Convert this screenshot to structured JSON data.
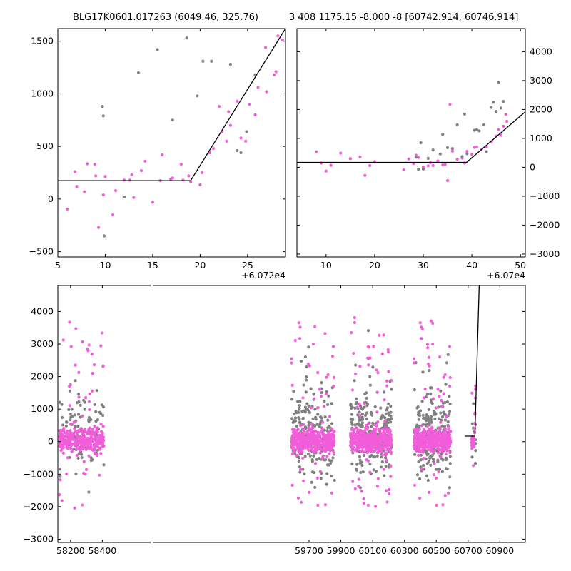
{
  "colors": {
    "model": "#000000",
    "fit_points": "#f25ddb",
    "other_points": "#808080",
    "background": "#ffffff"
  },
  "chart_data": [
    {
      "type": "scatter",
      "title": "BLG17K0601.017263 (6049.46, 325.76)",
      "x_offset_label": "+6.072e4",
      "xlabel": "",
      "ylabel": "",
      "xlim": [
        5,
        29
      ],
      "ylim": [
        -550,
        1620
      ],
      "xticks": [
        5,
        10,
        15,
        20,
        25
      ],
      "yticks": [
        -500,
        0,
        500,
        1000,
        1500
      ],
      "model_line": {
        "x": [
          5,
          19.0,
          29
        ],
        "y": [
          175,
          175,
          1620
        ]
      },
      "series": [
        {
          "color": "#f25ddb",
          "x": [
            6.0,
            6.8,
            7.0,
            7.8,
            8.1,
            8.9,
            9.0,
            9.3,
            9.8,
            10.0,
            10.8,
            11.1,
            12.0,
            12.6,
            12.8,
            13.0,
            13.8,
            14.2,
            15.0,
            15.8,
            16.0,
            16.9,
            17.1,
            18.0,
            18.2,
            18.8,
            19.0,
            20.0,
            20.2,
            21.0,
            21.4,
            22.0,
            22.3,
            22.8,
            23.0,
            23.2,
            23.9,
            24.3,
            24.8,
            25.2,
            25.8,
            26.1,
            26.9,
            27.0,
            27.8,
            28.0,
            28.2,
            28.7
          ],
          "y": [
            -95,
            260,
            120,
            70,
            335,
            330,
            220,
            -270,
            40,
            215,
            -150,
            80,
            180,
            180,
            230,
            15,
            270,
            360,
            -30,
            175,
            420,
            190,
            200,
            330,
            180,
            220,
            165,
            135,
            250,
            440,
            480,
            880,
            640,
            550,
            830,
            700,
            930,
            580,
            550,
            900,
            800,
            1060,
            1440,
            1020,
            1180,
            1210,
            1550,
            1510
          ]
        },
        {
          "color": "#808080",
          "x": [
            9.7,
            9.8,
            9.9,
            12.0,
            13.5,
            15.5,
            17.1,
            18.6,
            19.7,
            20.3,
            21.2,
            23.2,
            23.9,
            24.3,
            24.9,
            25.8
          ],
          "y": [
            880,
            790,
            -350,
            20,
            1200,
            1420,
            750,
            1530,
            980,
            1310,
            1310,
            1280,
            460,
            440,
            640,
            1180
          ]
        }
      ]
    },
    {
      "type": "scatter",
      "title": "3 408 1175.15 -8.000 -8 [60742.914, 60746.914]",
      "x_offset_label": "+6.07e4",
      "xlabel": "",
      "ylabel": "",
      "xlim": [
        4,
        51
      ],
      "ylim": [
        -3100,
        4800
      ],
      "xticks": [
        10,
        20,
        30,
        40,
        50
      ],
      "yticks": [
        -3000,
        -2000,
        -1000,
        0,
        1000,
        2000,
        3000,
        4000
      ],
      "model_line": {
        "x": [
          4,
          38.9,
          51
        ],
        "y": [
          170,
          170,
          1920
        ]
      },
      "series": [
        {
          "color": "#f25ddb",
          "x": [
            8.0,
            9.0,
            10.0,
            11.0,
            13.0,
            15.0,
            17.0,
            18.0,
            19.0,
            20.0,
            26.0,
            27.0,
            28.0,
            28.5,
            29.0,
            30.0,
            31.0,
            31.5,
            32.0,
            33.0,
            34.0,
            34.5,
            35.0,
            35.5,
            36.0,
            37.0,
            38.0,
            38.5,
            39.0,
            40.0,
            40.5,
            41.0,
            42.0,
            43.0,
            44.0,
            45.0,
            45.5,
            46.0,
            46.5,
            47.0,
            47.2
          ],
          "y": [
            540,
            150,
            -130,
            70,
            490,
            300,
            360,
            -280,
            60,
            200,
            -90,
            290,
            130,
            420,
            340,
            10,
            50,
            160,
            60,
            220,
            80,
            100,
            -460,
            2180,
            560,
            280,
            320,
            150,
            550,
            450,
            690,
            700,
            620,
            700,
            880,
            1080,
            1300,
            1110,
            1420,
            1830,
            1590
          ]
        },
        {
          "color": "#808080",
          "x": [
            28.5,
            29.0,
            29.5,
            30.0,
            31.0,
            32.0,
            33.5,
            34.0,
            35.0,
            36.0,
            37.0,
            38.0,
            38.5,
            39.0,
            40.5,
            41.0,
            41.5,
            42.5,
            43.0,
            44.0,
            44.5,
            45.0,
            45.5,
            46.0,
            46.5
          ],
          "y": [
            350,
            -70,
            850,
            -60,
            310,
            600,
            460,
            1140,
            680,
            650,
            1470,
            370,
            1840,
            470,
            1280,
            1300,
            1260,
            1470,
            540,
            2070,
            2250,
            1930,
            2930,
            2050,
            2280
          ]
        }
      ]
    },
    {
      "type": "scatter",
      "title": "",
      "xlabel": "",
      "ylabel": "",
      "xlim": [
        58120,
        61060
      ],
      "ylim": [
        -3100,
        4800
      ],
      "x_break": {
        "after": 58480,
        "resume": 59560
      },
      "xticks": [
        58200,
        58400,
        59700,
        59900,
        60100,
        60300,
        60500,
        60700,
        60900
      ],
      "yticks": [
        -3000,
        -2000,
        -1000,
        0,
        1000,
        2000,
        3000,
        4000
      ],
      "model_line": {
        "x": [
          60680,
          60742.9,
          60746.9,
          60770
        ],
        "y": [
          170,
          170,
          900,
          4800
        ]
      },
      "seasons": [
        {
          "range": [
            58130,
            58410
          ],
          "count": 360,
          "other_count": 90
        },
        {
          "range": [
            59590,
            59860
          ],
          "count": 470,
          "other_count": 220
        },
        {
          "range": [
            59960,
            60220
          ],
          "count": 470,
          "other_count": 220
        },
        {
          "range": [
            60360,
            60590
          ],
          "count": 440,
          "other_count": 220
        },
        {
          "range": [
            60720,
            60748
          ],
          "count": 45,
          "other_count": 10
        }
      ]
    }
  ]
}
